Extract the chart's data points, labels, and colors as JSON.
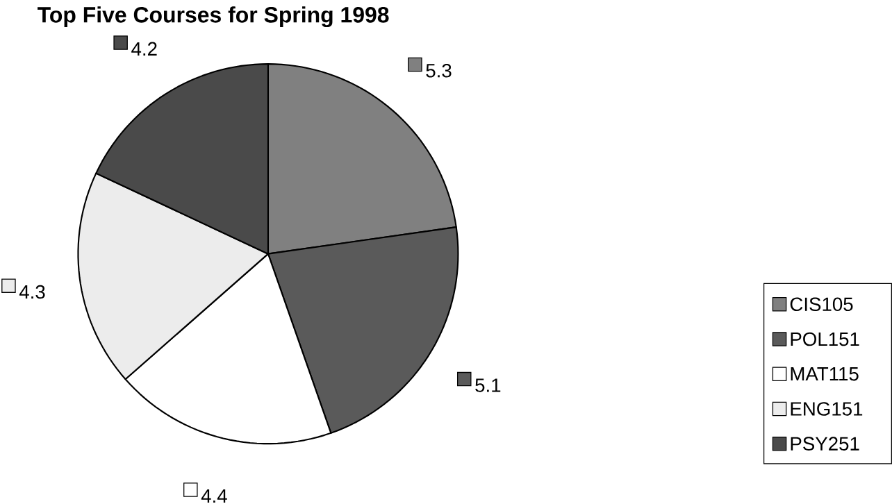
{
  "chart_data": {
    "type": "pie",
    "title": "Top Five Courses for Spring 1998",
    "categories": [
      "CIS105",
      "POL151",
      "MAT115",
      "ENG151",
      "PSY251"
    ],
    "values": [
      5.3,
      5.1,
      4.4,
      4.3,
      4.2
    ],
    "colors": [
      "#808080",
      "#5a5a5a",
      "#ffffff",
      "#ececec",
      "#4a4a4a"
    ],
    "data_labels": true,
    "legend": "right"
  }
}
